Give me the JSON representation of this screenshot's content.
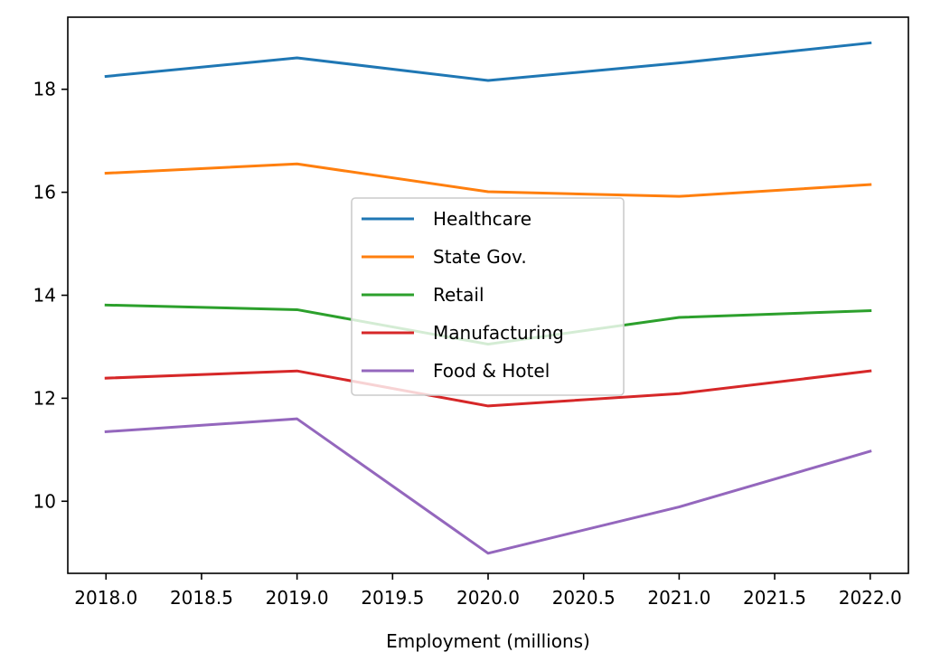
{
  "chart_data": {
    "type": "line",
    "title": "",
    "xlabel": "Employment (millions)",
    "ylabel": "",
    "x": [
      2018,
      2019,
      2020,
      2021,
      2022
    ],
    "xlim": [
      2017.8,
      2022.2
    ],
    "ylim": [
      8.6,
      19.4
    ],
    "xticks": [
      "2018.0",
      "2018.5",
      "2019.0",
      "2019.5",
      "2020.0",
      "2020.5",
      "2021.0",
      "2021.5",
      "2022.0"
    ],
    "xtick_values": [
      2018.0,
      2018.5,
      2019.0,
      2019.5,
      2020.0,
      2020.5,
      2021.0,
      2021.5,
      2022.0
    ],
    "yticks": [
      "10",
      "12",
      "14",
      "16",
      "18"
    ],
    "ytick_values": [
      10,
      12,
      14,
      16,
      18
    ],
    "grid": false,
    "legend_position": "center",
    "series": [
      {
        "name": "Healthcare",
        "color": "#1f77b4",
        "values": [
          18.25,
          18.61,
          18.17,
          18.51,
          18.9
        ]
      },
      {
        "name": "State Gov.",
        "color": "#ff7f0e",
        "values": [
          16.37,
          16.55,
          16.01,
          15.92,
          16.15
        ]
      },
      {
        "name": "Retail",
        "color": "#2ca02c",
        "values": [
          13.81,
          13.72,
          13.05,
          13.57,
          13.7
        ]
      },
      {
        "name": "Manufacturing",
        "color": "#d62728",
        "values": [
          12.39,
          12.53,
          11.85,
          12.09,
          12.53
        ]
      },
      {
        "name": "Food & Hotel",
        "color": "#9467bd",
        "values": [
          11.35,
          11.6,
          8.99,
          9.89,
          10.97
        ]
      }
    ]
  }
}
